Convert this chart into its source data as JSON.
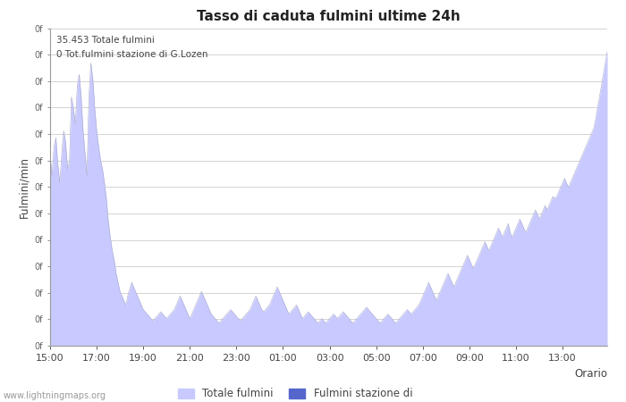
{
  "title": "Tasso di caduta fulmini ultime 24h",
  "xlabel": "Orario",
  "ylabel": "Fulmini/min",
  "annotation_line1": "35.453 Totale fulmini",
  "annotation_line2": "0 Tot.fulmini stazione di G.Lozen",
  "watermark": "www.lightningmaps.org",
  "legend_label1": "Totale fulmini",
  "legend_label2": "Fulmini stazione di",
  "fill_color1": "#c8caff",
  "fill_color2": "#5566cc",
  "background_color": "#ffffff",
  "grid_color": "#cccccc",
  "x_ticks": [
    "15:00",
    "17:00",
    "19:00",
    "21:00",
    "23:00",
    "01:00",
    "03:00",
    "05:00",
    "07:00",
    "09:00",
    "11:00",
    "13:00"
  ],
  "tick_hours": [
    15,
    17,
    19,
    21,
    23,
    1,
    3,
    5,
    7,
    9,
    11,
    13
  ],
  "ytick_count": 13,
  "num_points": 288,
  "totale_fulmini": [
    85,
    75,
    88,
    92,
    80,
    72,
    85,
    95,
    90,
    78,
    82,
    110,
    105,
    98,
    115,
    120,
    110,
    95,
    85,
    75,
    110,
    125,
    118,
    105,
    95,
    88,
    82,
    78,
    72,
    65,
    55,
    48,
    42,
    38,
    32,
    28,
    24,
    22,
    20,
    18,
    22,
    25,
    28,
    26,
    24,
    22,
    20,
    18,
    16,
    15,
    14,
    13,
    12,
    11,
    12,
    13,
    14,
    15,
    14,
    13,
    12,
    13,
    14,
    15,
    16,
    18,
    20,
    22,
    20,
    18,
    16,
    14,
    12,
    14,
    16,
    18,
    20,
    22,
    24,
    22,
    20,
    18,
    16,
    14,
    13,
    12,
    11,
    10,
    11,
    12,
    13,
    14,
    15,
    16,
    15,
    14,
    13,
    12,
    11,
    12,
    13,
    14,
    15,
    16,
    18,
    20,
    22,
    20,
    18,
    16,
    15,
    16,
    17,
    18,
    20,
    22,
    24,
    26,
    24,
    22,
    20,
    18,
    16,
    14,
    15,
    16,
    17,
    18,
    16,
    14,
    12,
    13,
    14,
    15,
    14,
    13,
    12,
    11,
    10,
    11,
    12,
    11,
    10,
    11,
    12,
    13,
    14,
    13,
    12,
    13,
    14,
    15,
    14,
    13,
    12,
    11,
    10,
    11,
    12,
    13,
    14,
    15,
    16,
    17,
    16,
    15,
    14,
    13,
    12,
    11,
    10,
    11,
    12,
    13,
    14,
    13,
    12,
    11,
    10,
    11,
    12,
    13,
    14,
    15,
    16,
    15,
    14,
    15,
    16,
    17,
    18,
    20,
    22,
    24,
    26,
    28,
    26,
    24,
    22,
    20,
    22,
    24,
    26,
    28,
    30,
    32,
    30,
    28,
    26,
    28,
    30,
    32,
    34,
    36,
    38,
    40,
    38,
    36,
    34,
    36,
    38,
    40,
    42,
    44,
    46,
    44,
    42,
    44,
    46,
    48,
    50,
    52,
    50,
    48,
    50,
    52,
    54,
    50,
    48,
    50,
    52,
    54,
    56,
    54,
    52,
    50,
    52,
    54,
    56,
    58,
    60,
    58,
    56,
    58,
    60,
    62,
    60,
    62,
    64,
    66,
    65,
    66,
    68,
    70,
    72,
    74,
    72,
    70,
    72,
    74,
    76,
    78,
    80,
    82,
    84,
    86,
    88,
    90,
    92,
    94,
    96,
    100,
    105,
    110,
    115,
    120,
    125,
    130
  ],
  "station_fulmini_sparse": {
    "indices": [],
    "values": []
  }
}
